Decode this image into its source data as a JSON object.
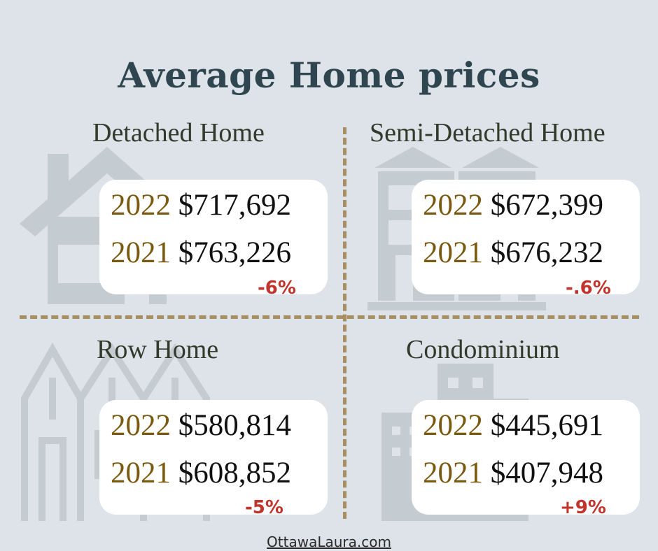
{
  "title": "Average Home prices",
  "footer": "OttawaLaura.com",
  "colors": {
    "background": "#dde3e8",
    "title": "#2f4650",
    "year": "#7a5a10",
    "price": "#111111",
    "change": "#c2332b",
    "divider": "#a88f62",
    "icon": "#c4cbd1"
  },
  "quadrants": [
    {
      "name": "Detached Home",
      "icon": "detached-house-icon",
      "rows": [
        {
          "year": "2022",
          "price": "$717,692"
        },
        {
          "year": "2021",
          "price": "$763,226"
        }
      ],
      "change": "-6%"
    },
    {
      "name": "Semi-Detached Home",
      "icon": "semi-detached-house-icon",
      "rows": [
        {
          "year": "2022",
          "price": "$672,399"
        },
        {
          "year": "2021",
          "price": "$676,232"
        }
      ],
      "change": "-.6%"
    },
    {
      "name": "Row Home",
      "icon": "row-house-icon",
      "rows": [
        {
          "year": "2022",
          "price": "$580,814"
        },
        {
          "year": "2021",
          "price": "$608,852"
        }
      ],
      "change": "-5%"
    },
    {
      "name": "Condominium",
      "icon": "condominium-building-icon",
      "rows": [
        {
          "year": "2022",
          "price": "$445,691"
        },
        {
          "year": "2021",
          "price": "$407,948"
        }
      ],
      "change": "+9%"
    }
  ]
}
